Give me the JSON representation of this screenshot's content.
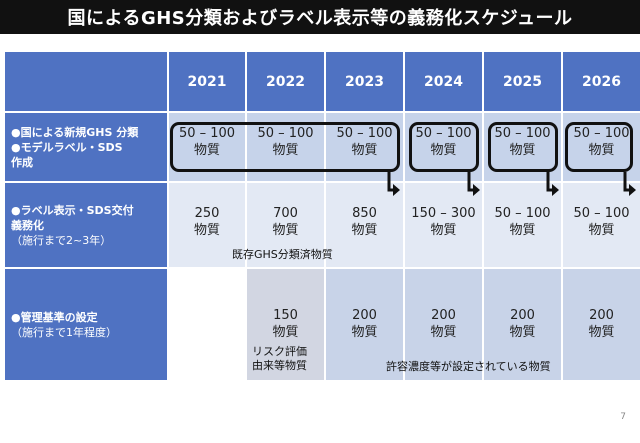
{
  "title": "国によるGHS分類およびラベル表示等の義務化スケジュール",
  "years": [
    "2021",
    "2022",
    "2023",
    "2024",
    "2025",
    "2026"
  ],
  "row1": {
    "label_line1": "●国による新規GHS 分類",
    "label_line2": "●モデルラベル・SDS",
    "label_line3": "作成",
    "cells": [
      {
        "num": "50 – 100",
        "unit": "物質"
      },
      {
        "num": "50 – 100",
        "unit": "物質"
      },
      {
        "num": "50 – 100",
        "unit": "物質"
      },
      {
        "num": "50 – 100",
        "unit": "物質"
      },
      {
        "num": "50 – 100",
        "unit": "物質"
      },
      {
        "num": "50 – 100",
        "unit": "物質"
      }
    ]
  },
  "row2": {
    "label_line1": "●ラベル表示・SDS交付",
    "label_line2": "義務化",
    "label_line3": "（施行まで2~3年）",
    "cells": [
      {
        "num": "250",
        "unit": "物質"
      },
      {
        "num": "700",
        "unit": "物質"
      },
      {
        "num": "850",
        "unit": "物質"
      },
      {
        "num": "150 – 300",
        "unit": "物質"
      },
      {
        "num": "50 – 100",
        "unit": "物質"
      },
      {
        "num": "50 – 100",
        "unit": "物質"
      }
    ],
    "note": "既存GHS分類済物質"
  },
  "row3": {
    "label_line1": "●管理基準の設定",
    "label_line2": "（施行まで1年程度）",
    "cells": [
      {
        "num": "",
        "unit": ""
      },
      {
        "num": "150",
        "unit": "物質"
      },
      {
        "num": "200",
        "unit": "物質"
      },
      {
        "num": "200",
        "unit": "物質"
      },
      {
        "num": "200",
        "unit": "物質"
      },
      {
        "num": "200",
        "unit": "物質"
      }
    ],
    "note_left_line1": "リスク評価",
    "note_left_line2": "由来等物質",
    "note_right": "許容濃度等が設定されている物質"
  },
  "page_number": "7",
  "colors": {
    "header": "#4f72c2",
    "row1_bg": "#c6d3ea",
    "row2_bg": "#e3e9f4",
    "row3_bg": "#c8d3e8",
    "row3_first": "#d2d6e2",
    "title_bg": "#111111"
  }
}
